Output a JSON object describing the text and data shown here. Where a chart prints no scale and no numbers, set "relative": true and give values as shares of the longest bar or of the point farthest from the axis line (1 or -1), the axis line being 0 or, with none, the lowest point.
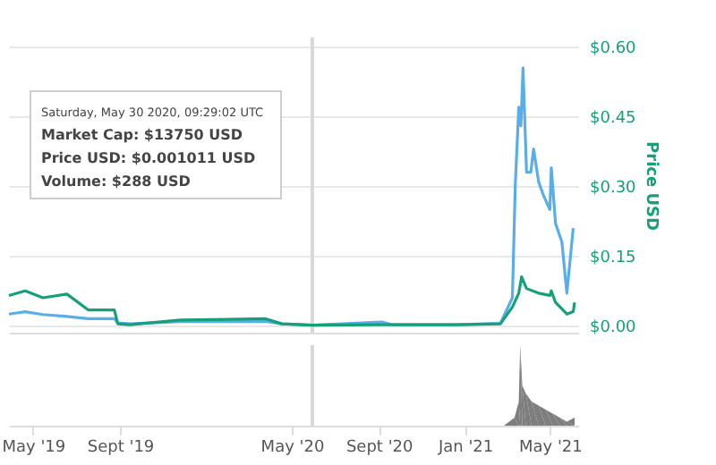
{
  "chart_data": [
    {
      "type": "line",
      "ylabel": "Price USD",
      "tick_labels": "y",
      "grid": "y",
      "xlim": [
        "2019-03-28",
        "2021-06-10"
      ],
      "ylim": [
        -0.015,
        0.62
      ],
      "yticks": [
        {
          "value": 0,
          "label": "$0.00"
        },
        {
          "value": 0.15,
          "label": "$0.15"
        },
        {
          "value": 0.3,
          "label": "$0.30"
        },
        {
          "value": 0.45,
          "label": "$0.45"
        },
        {
          "value": 0.6,
          "label": "$0.60"
        }
      ],
      "ref_lines": [
        {
          "axis": "x",
          "value": "2020-05-30",
          "color": "#d8d8d8"
        }
      ],
      "annotations": [
        "Saturday, May 30 2020, 09:29:02 UTC",
        "Market Cap: $13750 USD",
        "Price USD: $0.001011 USD",
        "Volume: $288 USD"
      ],
      "series": [
        {
          "color": "#5aaee8",
          "x": [
            "2019-03-28",
            "2019-04-20",
            "2019-05-15",
            "2019-06-18",
            "2019-07-18",
            "2019-08-24",
            "2019-08-29",
            "2019-09-15",
            "2019-11-25",
            "2020-03-25",
            "2020-04-17",
            "2020-05-30",
            "2020-09-05",
            "2020-09-20",
            "2020-12-20",
            "2021-02-20",
            "2021-03-09",
            "2021-03-13",
            "2021-03-18",
            "2021-03-21",
            "2021-03-24",
            "2021-03-29",
            "2021-04-04",
            "2021-04-08",
            "2021-04-15",
            "2021-04-22",
            "2021-05-01",
            "2021-05-03",
            "2021-05-09",
            "2021-05-18",
            "2021-05-25",
            "2021-06-03"
          ],
          "values": [
            0.025,
            0.03,
            0.024,
            0.02,
            0.015,
            0.015,
            0.006,
            0.004,
            0.009,
            0.009,
            0.004,
            0.001,
            0.008,
            0.002,
            0.002,
            0.005,
            0.06,
            0.3,
            0.47,
            0.43,
            0.555,
            0.33,
            0.33,
            0.38,
            0.31,
            0.28,
            0.25,
            0.34,
            0.22,
            0.18,
            0.07,
            0.21
          ]
        },
        {
          "color": "#16a07a",
          "x": [
            "2019-03-28",
            "2019-04-20",
            "2019-05-15",
            "2019-06-18",
            "2019-07-18",
            "2019-08-24",
            "2019-08-29",
            "2019-09-15",
            "2019-11-25",
            "2020-03-25",
            "2020-04-17",
            "2020-05-30",
            "2020-09-05",
            "2020-12-20",
            "2021-02-20",
            "2021-03-09",
            "2021-03-18",
            "2021-03-22",
            "2021-03-29",
            "2021-04-15",
            "2021-05-01",
            "2021-05-03",
            "2021-05-09",
            "2021-05-25",
            "2021-06-03",
            "2021-06-05"
          ],
          "values": [
            0.065,
            0.075,
            0.06,
            0.068,
            0.034,
            0.034,
            0.004,
            0.002,
            0.012,
            0.015,
            0.004,
            0.001,
            0.002,
            0.002,
            0.004,
            0.04,
            0.07,
            0.105,
            0.08,
            0.07,
            0.065,
            0.075,
            0.05,
            0.025,
            0.03,
            0.05
          ]
        }
      ]
    },
    {
      "type": "area",
      "relative": true,
      "tick_labels": "x",
      "xlim": [
        "2019-03-28",
        "2021-06-10"
      ],
      "xticks": [
        {
          "value": "2019-05-01",
          "label": "May '19"
        },
        {
          "value": "2019-09-01",
          "label": "Sept '19"
        },
        {
          "value": "2020-05-01",
          "label": "May '20"
        },
        {
          "value": "2020-09-01",
          "label": "Sept '20"
        },
        {
          "value": "2021-01-01",
          "label": "Jan '21"
        },
        {
          "value": "2021-05-01",
          "label": "May '21"
        }
      ],
      "ref_lines": [
        {
          "axis": "x",
          "value": "2020-05-30",
          "color": "#d8d8d8"
        }
      ],
      "series": [
        {
          "color": "#777777",
          "x": [
            "2019-03-28",
            "2021-02-25",
            "2021-03-12",
            "2021-03-18",
            "2021-03-20",
            "2021-03-23",
            "2021-03-28",
            "2021-04-05",
            "2021-04-15",
            "2021-04-25",
            "2021-05-05",
            "2021-05-15",
            "2021-05-25",
            "2021-06-05"
          ],
          "values": [
            0,
            0,
            0.1,
            0.3,
            1,
            0.5,
            0.4,
            0.3,
            0.25,
            0.2,
            0.15,
            0.1,
            0.05,
            0.1
          ]
        }
      ]
    }
  ]
}
